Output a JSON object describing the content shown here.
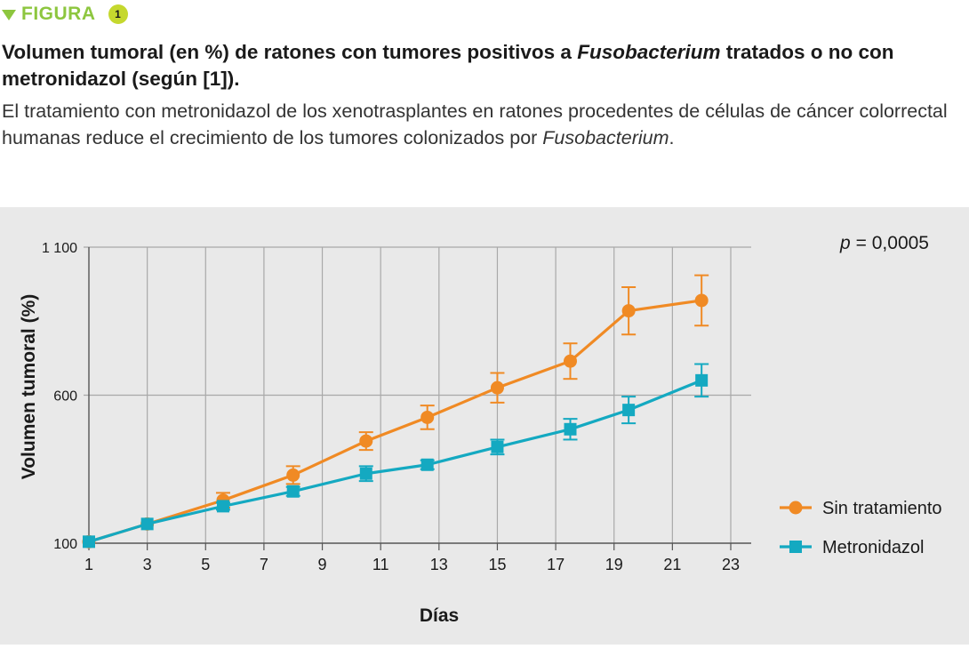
{
  "figure": {
    "label": "FIGURA",
    "number": "1",
    "title_parts": [
      "Volumen tumoral (en %) de ratones con tumores positivos a ",
      "Fusobacterium",
      " tratados o no con metronidazol (según [1])."
    ],
    "caption_parts": [
      "El tratamiento con metronidazol de los xenotrasplantes en ratones procedentes de células de cáncer colorrectal humanas reduce el crecimiento de los tumores colonizados por ",
      "Fusobacterium",
      "."
    ]
  },
  "chart_data": {
    "type": "line",
    "xlabel": "Días",
    "ylabel": "Volumen tumoral (%)",
    "annotation": {
      "p_label": "p",
      "p_value": "= 0,0005"
    },
    "xlim": [
      1,
      23
    ],
    "ylim": [
      100,
      1100
    ],
    "x_ticks": [
      1,
      3,
      5,
      7,
      9,
      11,
      13,
      15,
      17,
      19,
      21,
      23
    ],
    "y_ticks": [
      100,
      600,
      1100
    ],
    "y_tick_labels": [
      "100",
      "600",
      "1 100"
    ],
    "grid": true,
    "legend_position": "right",
    "series": [
      {
        "name": "Sin tratamiento",
        "marker": "circle",
        "color": "#f08a24",
        "x": [
          1,
          3,
          5.6,
          8,
          10.5,
          12.6,
          15,
          17.5,
          19.5,
          22
        ],
        "y": [
          105,
          165,
          245,
          330,
          445,
          525,
          625,
          715,
          885,
          920
        ],
        "error": [
          0,
          0,
          25,
          30,
          30,
          40,
          50,
          60,
          80,
          85
        ]
      },
      {
        "name": "Metronidazol",
        "marker": "square",
        "color": "#14a9c1",
        "x": [
          1,
          3,
          5.6,
          8,
          10.5,
          12.6,
          15,
          17.5,
          19.5,
          22
        ],
        "y": [
          105,
          165,
          225,
          275,
          335,
          365,
          425,
          485,
          550,
          650
        ],
        "error": [
          0,
          0,
          12,
          15,
          25,
          15,
          25,
          35,
          45,
          55
        ]
      }
    ]
  }
}
